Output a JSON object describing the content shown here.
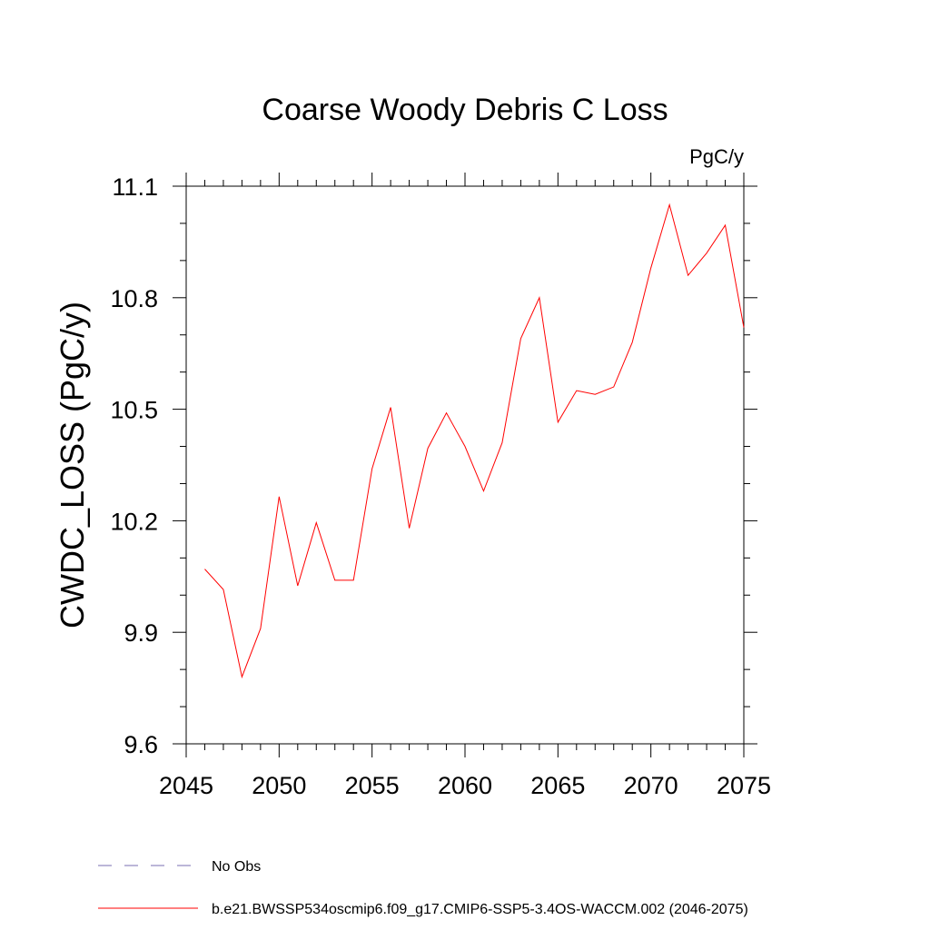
{
  "chart_data": {
    "type": "line",
    "title": "Coarse Woody Debris C Loss",
    "units": "PgC/y",
    "ylabel": "CWDC_LOSS  (PgC/y)",
    "xlabel": "",
    "xlim": [
      2045,
      2075
    ],
    "ylim": [
      9.6,
      11.1
    ],
    "xticks": [
      2045,
      2050,
      2055,
      2060,
      2065,
      2070,
      2075
    ],
    "xtick_labels": [
      "2045",
      "2050",
      "2055",
      "2060",
      "2065",
      "2070",
      "2075"
    ],
    "yticks": [
      9.6,
      9.9,
      10.2,
      10.5,
      10.8,
      11.1
    ],
    "ytick_labels": [
      "9.6",
      "9.9",
      "10.2",
      "10.5",
      "10.8",
      "11.1"
    ],
    "grid": false,
    "legend_position": "bottom",
    "series": [
      {
        "name": "b.e21.BWSSP534oscmip6.f09_g17.CMIP6-SSP5-3.4OS-WACCM.002 (2046-2075)",
        "color": "#ff0000",
        "style": "solid",
        "x": [
          2046,
          2047,
          2048,
          2049,
          2050,
          2051,
          2052,
          2053,
          2054,
          2055,
          2056,
          2057,
          2058,
          2059,
          2060,
          2061,
          2062,
          2063,
          2064,
          2065,
          2066,
          2067,
          2068,
          2069,
          2070,
          2071,
          2072,
          2073,
          2074,
          2075
        ],
        "values": [
          10.07,
          10.015,
          9.78,
          9.91,
          10.265,
          10.025,
          10.195,
          10.04,
          10.04,
          10.34,
          10.505,
          10.18,
          10.395,
          10.49,
          10.4,
          10.28,
          10.41,
          10.69,
          10.8,
          10.465,
          10.55,
          10.54,
          10.56,
          10.68,
          10.88,
          11.05,
          10.86,
          10.92,
          10.995,
          10.72
        ]
      }
    ],
    "legend": [
      {
        "label": "No Obs",
        "color": "#7a6fb0",
        "style": "dashed"
      },
      {
        "label": "b.e21.BWSSP534oscmip6.f09_g17.CMIP6-SSP5-3.4OS-WACCM.002 (2046-2075)",
        "color": "#ff0000",
        "style": "solid"
      }
    ]
  }
}
